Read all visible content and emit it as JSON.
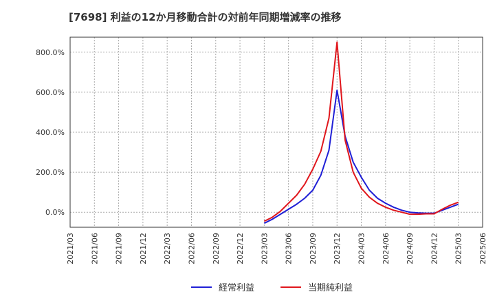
{
  "chart_data": {
    "type": "line",
    "title": "[7698]  利益の12か月移動合計の対前年同期増減率の推移",
    "xlabel": "",
    "ylabel": "",
    "x_ticks": [
      "2021/03",
      "2021/06",
      "2021/09",
      "2021/12",
      "2022/03",
      "2022/06",
      "2022/09",
      "2022/12",
      "2023/03",
      "2023/06",
      "2023/09",
      "2023/12",
      "2024/03",
      "2024/06",
      "2024/09",
      "2024/12",
      "2025/03",
      "2025/06"
    ],
    "y_ticks": [
      0,
      200,
      400,
      600,
      800
    ],
    "y_tick_labels": [
      "0.0%",
      "200.0%",
      "400.0%",
      "600.0%",
      "800.0%"
    ],
    "ylim": [
      -75,
      875
    ],
    "grid": true,
    "legend_position": "bottom-center",
    "series": [
      {
        "name": "経常利益",
        "color": "#1f1fd6",
        "x": [
          "2023/03",
          "2023/04",
          "2023/05",
          "2023/06",
          "2023/07",
          "2023/08",
          "2023/09",
          "2023/10",
          "2023/11",
          "2023/12",
          "2024/01",
          "2024/02",
          "2024/03",
          "2024/04",
          "2024/05",
          "2024/06",
          "2024/07",
          "2024/08",
          "2024/09",
          "2024/10",
          "2024/11",
          "2024/12",
          "2025/01",
          "2025/02",
          "2025/03"
        ],
        "values": [
          -55,
          -35,
          -10,
          15,
          40,
          70,
          110,
          185,
          310,
          610,
          380,
          250,
          175,
          110,
          70,
          45,
          25,
          10,
          0,
          -3,
          -5,
          -5,
          10,
          25,
          40
        ]
      },
      {
        "name": "当期純利益",
        "color": "#e0161c",
        "x": [
          "2023/03",
          "2023/04",
          "2023/05",
          "2023/06",
          "2023/07",
          "2023/08",
          "2023/09",
          "2023/10",
          "2023/11",
          "2023/12",
          "2024/01",
          "2024/02",
          "2024/03",
          "2024/04",
          "2024/05",
          "2024/06",
          "2024/07",
          "2024/08",
          "2024/09",
          "2024/10",
          "2024/11",
          "2024/12",
          "2025/01",
          "2025/02",
          "2025/03"
        ],
        "values": [
          -45,
          -25,
          5,
          45,
          85,
          140,
          215,
          305,
          470,
          850,
          360,
          200,
          120,
          75,
          45,
          25,
          10,
          0,
          -10,
          -10,
          -8,
          -8,
          15,
          35,
          50
        ]
      }
    ]
  }
}
